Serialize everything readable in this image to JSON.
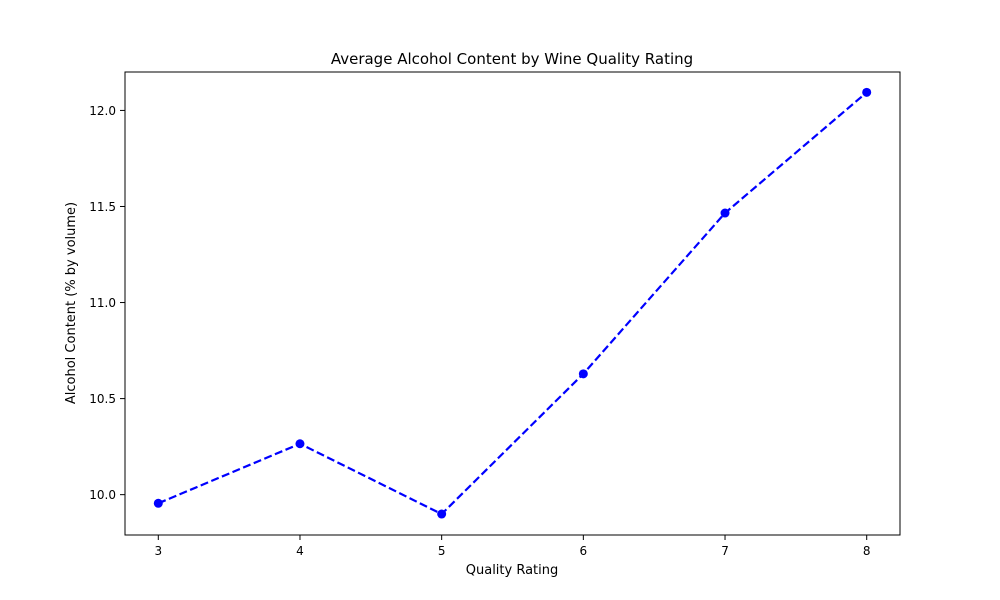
{
  "chart_data": {
    "type": "line",
    "title": "Average Alcohol Content by Wine Quality Rating",
    "xlabel": "Quality Rating",
    "ylabel": "Alcohol Content (% by volume)",
    "x": [
      3,
      4,
      5,
      6,
      7,
      8
    ],
    "series": [
      {
        "values": [
          9.955,
          10.265,
          9.899,
          10.629,
          11.466,
          12.094
        ],
        "color": "#0000ff",
        "line_style": "dashed",
        "marker": "circle"
      }
    ],
    "xlim": [
      2.765,
      8.235
    ],
    "ylim": [
      9.79,
      12.2
    ],
    "xticks": [
      3,
      4,
      5,
      6,
      7,
      8
    ],
    "xtick_labels": [
      "3",
      "4",
      "5",
      "6",
      "7",
      "8"
    ],
    "yticks": [
      10.0,
      10.5,
      11.0,
      11.5,
      12.0
    ],
    "ytick_labels": [
      "10.0",
      "10.5",
      "11.0",
      "11.5",
      "12.0"
    ],
    "grid": false,
    "legend": false
  }
}
